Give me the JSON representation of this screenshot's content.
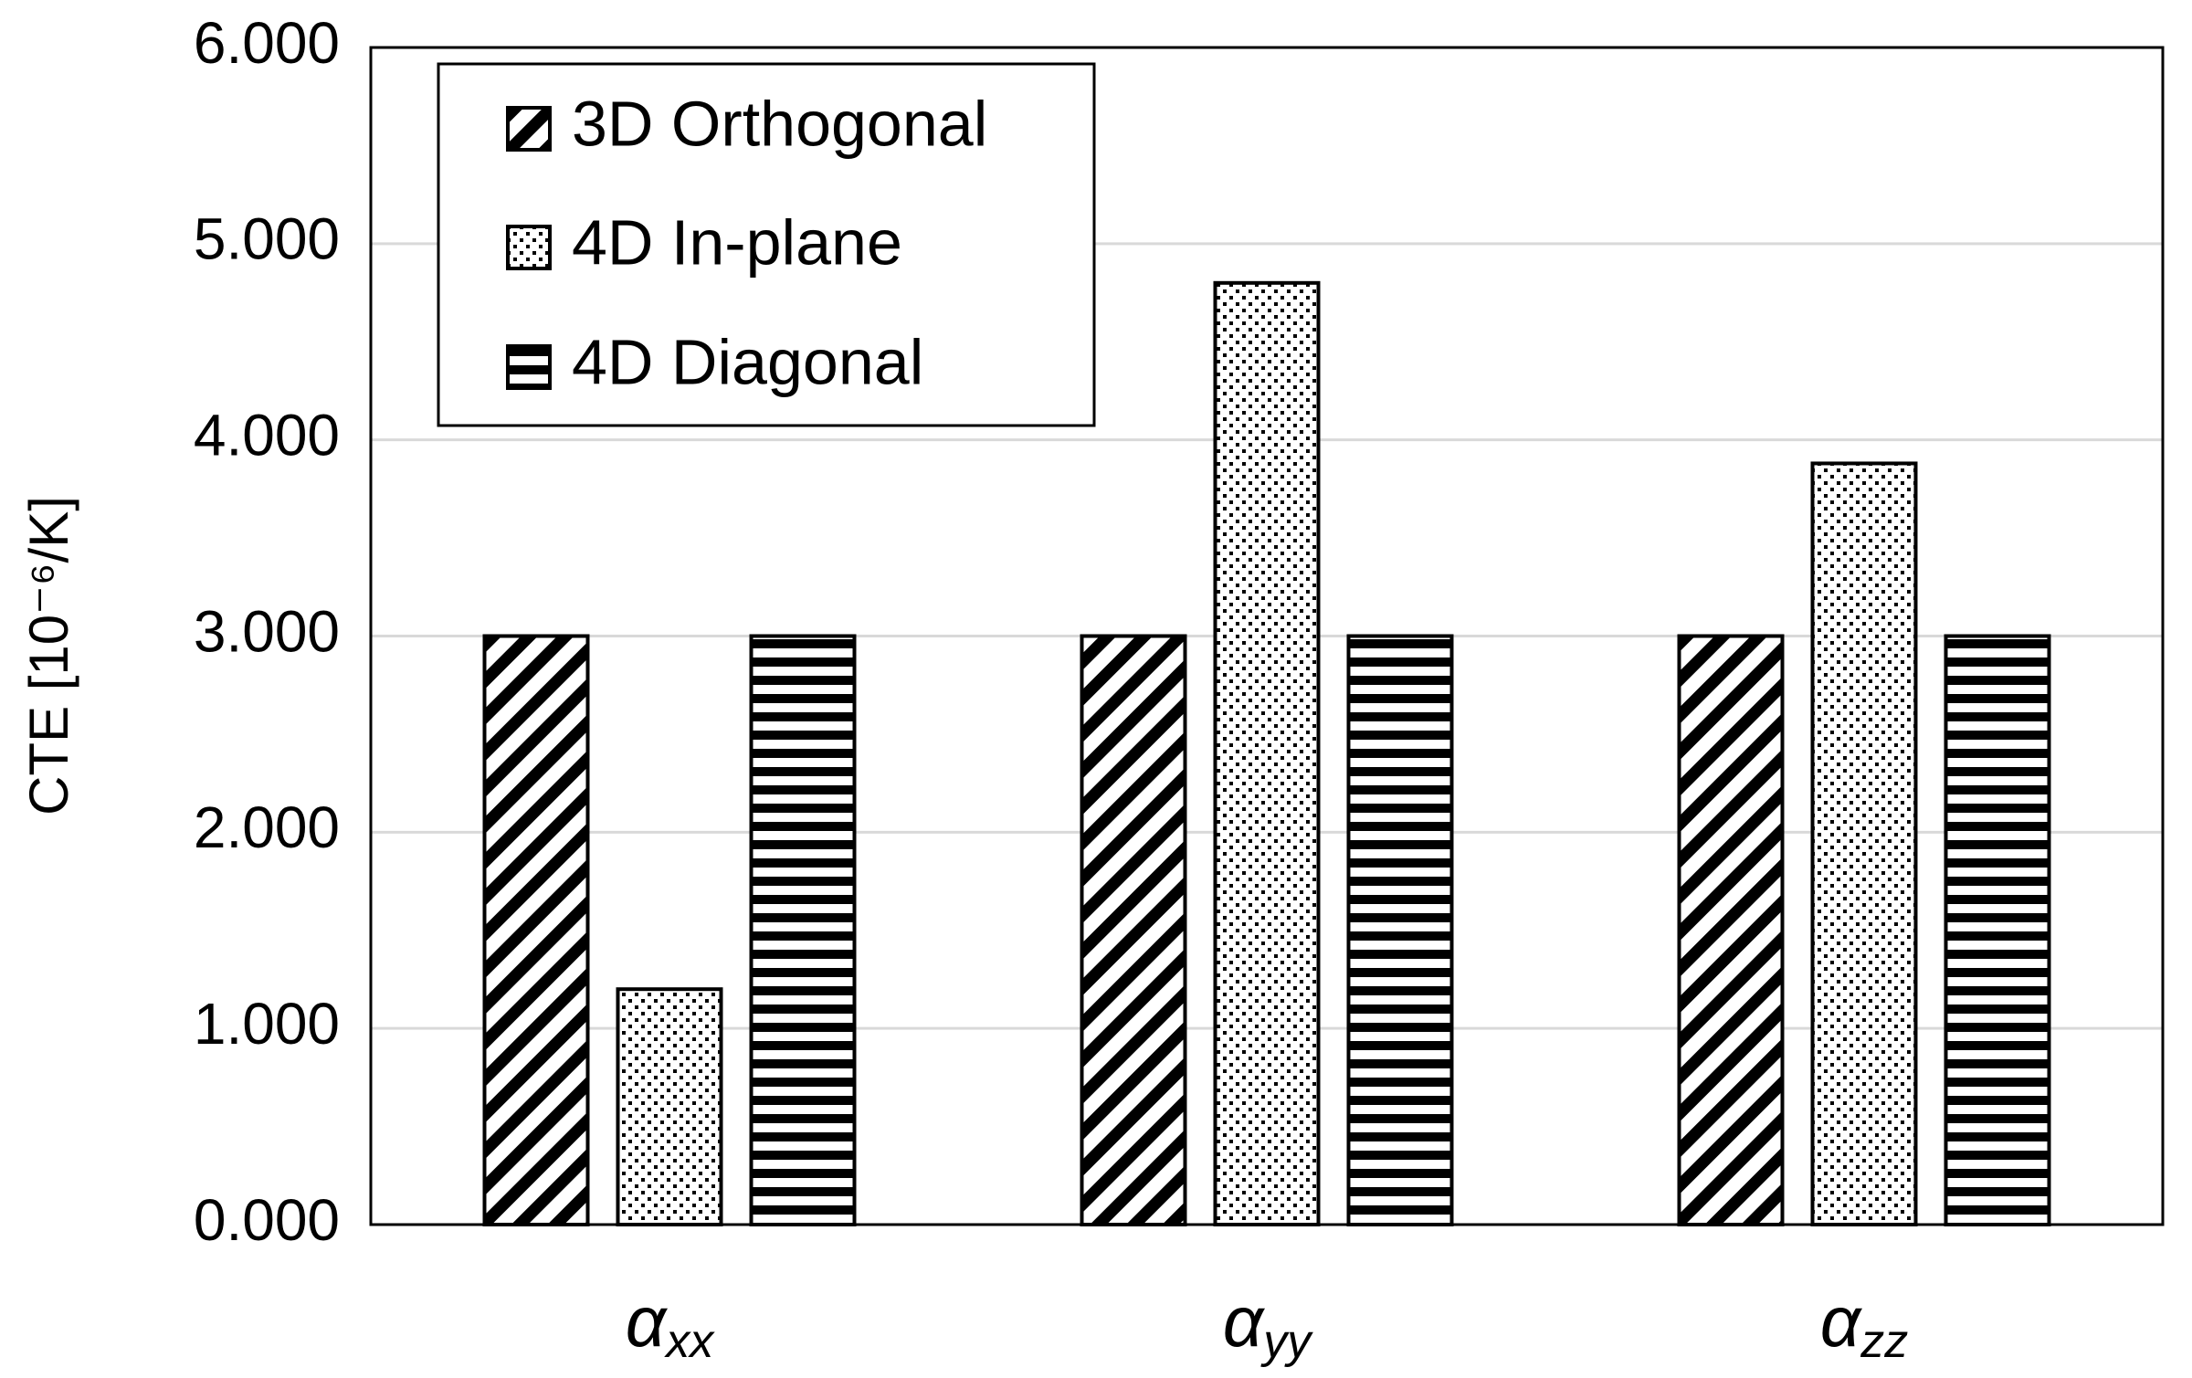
{
  "chart_data": {
    "type": "bar",
    "title": "",
    "xlabel": "",
    "ylabel": "CTE [10⁻⁶/K]",
    "ylim": [
      0,
      6
    ],
    "y_ticks": [
      "0.000",
      "1.000",
      "2.000",
      "3.000",
      "4.000",
      "5.000",
      "6.000"
    ],
    "grid": true,
    "legend_position": "top-left",
    "categories": [
      {
        "main": "α",
        "sub": "xx"
      },
      {
        "main": "α",
        "sub": "yy"
      },
      {
        "main": "α",
        "sub": "zz"
      }
    ],
    "series": [
      {
        "name": "3D Orthogonal",
        "pattern": "diagonal-hatch",
        "values": [
          3.0,
          3.0,
          3.0
        ]
      },
      {
        "name": "4D In-plane",
        "pattern": "dots",
        "values": [
          1.2,
          4.8,
          3.88
        ]
      },
      {
        "name": "4D Diagonal",
        "pattern": "horizontal-stripes",
        "values": [
          3.0,
          3.0,
          3.0
        ]
      }
    ],
    "colors": {
      "ink": "#000000",
      "grid": "#d9d9d9",
      "background": "#ffffff"
    }
  }
}
